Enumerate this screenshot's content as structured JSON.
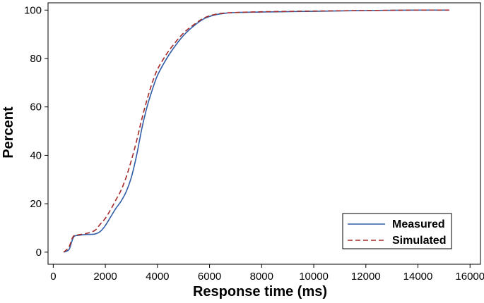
{
  "chart_data": {
    "type": "line",
    "title": "",
    "xlabel": "Response time (ms)",
    "ylabel": "Percent",
    "xlim": [
      -200,
      16400
    ],
    "ylim": [
      -5,
      103
    ],
    "xticks": [
      0,
      2000,
      4000,
      6000,
      8000,
      10000,
      12000,
      14000,
      16000
    ],
    "yticks": [
      0,
      20,
      40,
      60,
      80,
      100
    ],
    "xtick_labels": [
      "0",
      "2000",
      "4000",
      "6000",
      "8000",
      "10000",
      "12000",
      "14000",
      "16000"
    ],
    "ytick_labels": [
      "0",
      "20",
      "40",
      "60",
      "80",
      "100"
    ],
    "grid": false,
    "legend_position": "bottom-right",
    "series": [
      {
        "name": "Measured",
        "color": "#2F5DA8",
        "dash": "solid",
        "x": [
          400,
          600,
          700,
          800,
          1000,
          1300,
          1600,
          1800,
          2000,
          2200,
          2400,
          2600,
          2800,
          3000,
          3200,
          3400,
          3600,
          3800,
          4000,
          4300,
          4600,
          5000,
          5400,
          5800,
          6200,
          6600,
          7000,
          8000,
          10000,
          12000,
          14000,
          15200
        ],
        "y": [
          0,
          1,
          4,
          6.5,
          7,
          7.3,
          7.5,
          8.5,
          11,
          14.5,
          18,
          21,
          25,
          31,
          40,
          51,
          60,
          67,
          73,
          79,
          84,
          89.5,
          93.5,
          96.5,
          98,
          98.7,
          99,
          99.2,
          99.5,
          99.8,
          100,
          100
        ]
      },
      {
        "name": "Simulated",
        "color": "#A52A2A",
        "dash": "dashed",
        "x": [
          400,
          600,
          700,
          800,
          1000,
          1300,
          1600,
          1800,
          2000,
          2200,
          2400,
          2600,
          2800,
          3000,
          3200,
          3400,
          3600,
          3800,
          4000,
          4300,
          4600,
          5000,
          5400,
          5800,
          6200,
          6600,
          7000,
          8000,
          10000,
          12000,
          14000,
          15200
        ],
        "y": [
          0,
          2,
          5,
          6.8,
          7.2,
          7.8,
          9,
          11.5,
          14,
          17.5,
          21.5,
          25.5,
          31,
          38,
          46,
          55,
          63,
          70,
          75.5,
          81,
          85.5,
          90.5,
          94,
          96.8,
          98.2,
          98.8,
          99,
          99.3,
          99.6,
          99.8,
          100,
          100
        ]
      }
    ]
  }
}
